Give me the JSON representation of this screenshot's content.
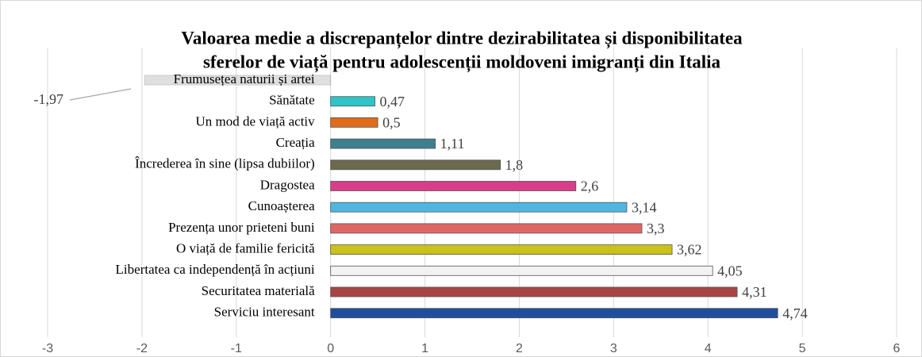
{
  "chart_data": {
    "type": "bar",
    "orientation": "horizontal",
    "title": [
      "Valoarea medie a discrepanțelor dintre dezirabilitatea și disponibilitatea",
      "sferelor de viață pentru adolescenții moldoveni imigranți din Italia"
    ],
    "categories": [
      "Frumusețea naturii și artei",
      "Sănătate",
      "Un mod de viață activ",
      "Creația",
      "Încrederea în sine (lipsa dubiilor)",
      "Dragostea",
      "Cunoașterea",
      "Prezența unor prieteni buni",
      "O viață de familie fericită",
      "Libertatea ca independență în acțiuni",
      "Securitatea materială",
      "Serviciu interesant"
    ],
    "values": [
      -1.97,
      0.47,
      0.5,
      1.11,
      1.8,
      2.6,
      3.14,
      3.3,
      3.62,
      4.05,
      4.31,
      4.74
    ],
    "value_labels": [
      "-1,97",
      "0,47",
      "0,5",
      "1,11",
      "1,8",
      "2,6",
      "3,14",
      "3,3",
      "3,62",
      "4,05",
      "4,31",
      "4,74"
    ],
    "colors": [
      "#a5a5a5",
      "#2ec4c8",
      "#e06c1a",
      "#3e7f8f",
      "#6b6a4e",
      "#d83d8a",
      "#4fb6e0",
      "#e06666",
      "#c9c21a",
      "#f2f2f2",
      "#a94444",
      "#1f4e9c"
    ],
    "xlim": [
      -3,
      6
    ],
    "xticks": [
      -3,
      -2,
      -1,
      0,
      1,
      2,
      3,
      4,
      5,
      6
    ],
    "grid": true
  }
}
